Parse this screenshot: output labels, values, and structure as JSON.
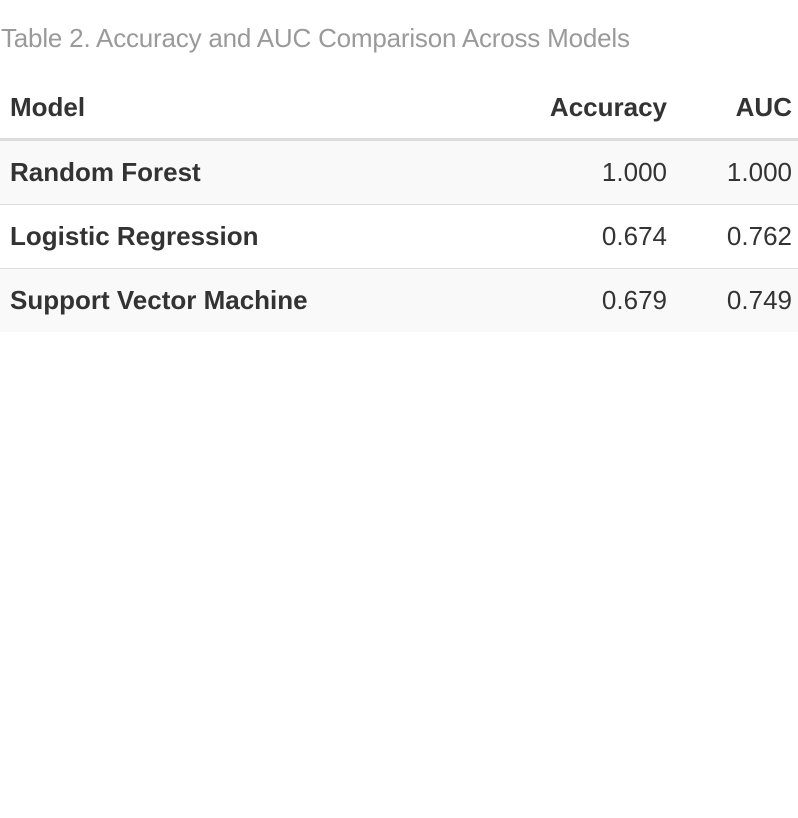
{
  "caption": "Table 2. Accuracy and AUC Comparison Across Models",
  "table": {
    "headers": [
      "Model",
      "Accuracy",
      "AUC"
    ],
    "rows": [
      [
        "Random Forest",
        "1.000",
        "1.000"
      ],
      [
        "Logistic Regression",
        "0.674",
        "0.762"
      ],
      [
        "Support Vector Machine",
        "0.679",
        "0.749"
      ]
    ]
  },
  "colors": {
    "caption": "#9a9a9a",
    "text": "#333333",
    "stripe": "#f9f9f9",
    "border": "#dddddd"
  }
}
